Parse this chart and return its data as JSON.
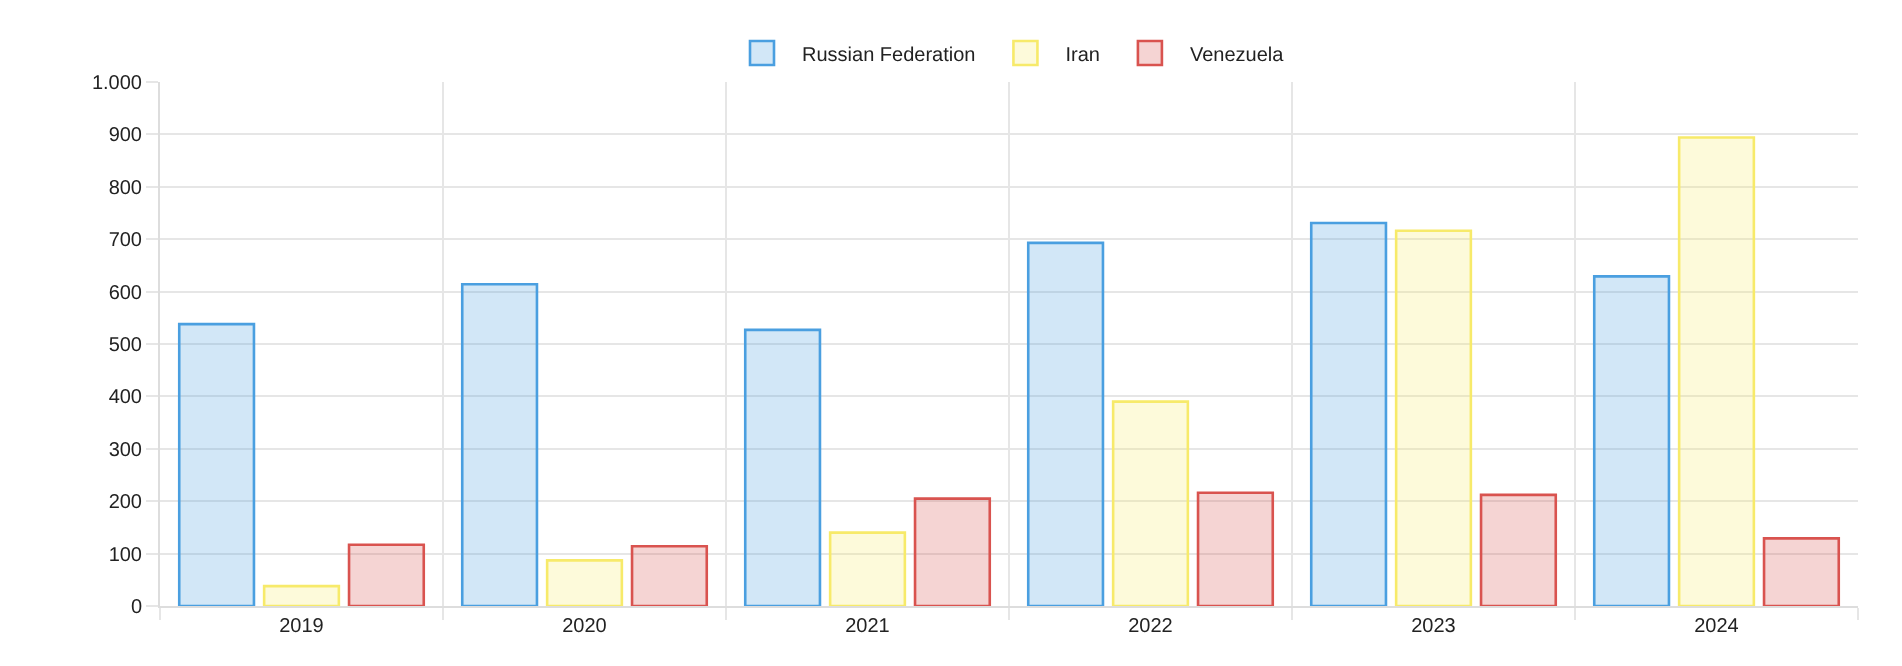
{
  "chart_data": {
    "type": "bar",
    "categories": [
      "2019",
      "2020",
      "2021",
      "2022",
      "2023",
      "2024"
    ],
    "series": [
      {
        "name": "Russian Federation",
        "color": "#4a9fe0",
        "values": [
          538,
          614,
          527,
          693,
          731,
          629
        ]
      },
      {
        "name": "Iran",
        "color": "#f7ea6a",
        "values": [
          38,
          87,
          140,
          390,
          716,
          894
        ]
      },
      {
        "name": "Venezuela",
        "color": "#d9534f",
        "values": [
          117,
          114,
          205,
          216,
          212,
          129
        ]
      }
    ],
    "ylim": [
      0,
      1000
    ],
    "yticks": [
      0,
      100,
      200,
      300,
      400,
      500,
      600,
      700,
      800,
      900,
      {
        "value": 1000,
        "label": "1.000"
      }
    ],
    "grid": true,
    "legend": "top"
  }
}
